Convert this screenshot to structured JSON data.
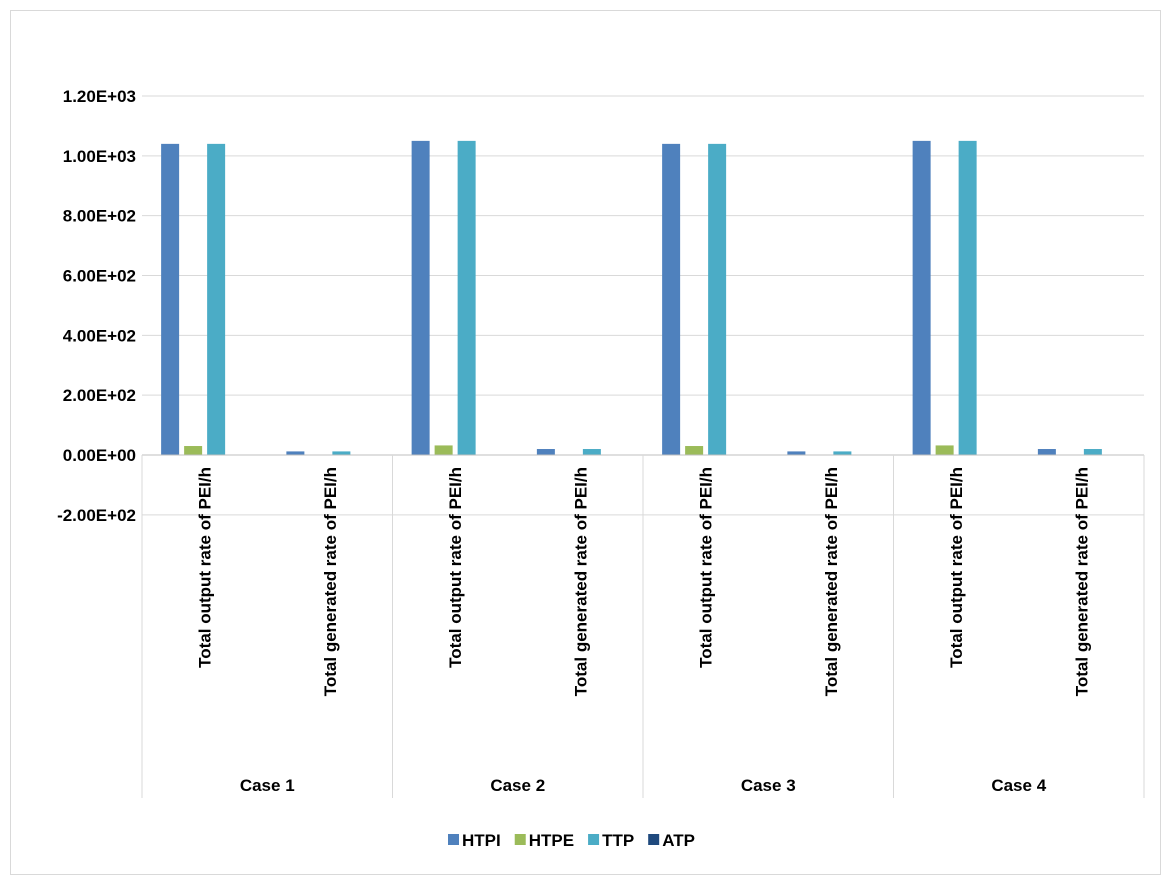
{
  "chart_data": {
    "type": "bar",
    "title": "",
    "xlabel": "",
    "ylabel": "",
    "ylim": [
      -200,
      1200
    ],
    "ytick_step": 200,
    "ytick_labels": [
      "-2.00E+02",
      "0.00E+00",
      "2.00E+02",
      "4.00E+02",
      "6.00E+02",
      "8.00E+02",
      "1.00E+03",
      "1.20E+03"
    ],
    "grid": true,
    "legend_position": "bottom",
    "groups": [
      "Case 1",
      "Case 2",
      "Case 3",
      "Case 4"
    ],
    "subcategories": [
      "Total output rate of PEI/h",
      "Total generated rate of PEI/h"
    ],
    "categories": [
      "Case 1 | Total output rate of PEI/h",
      "Case 1 | Total generated rate of PEI/h",
      "Case 2 | Total output rate of PEI/h",
      "Case 2 | Total generated rate of PEI/h",
      "Case 3 | Total output rate of PEI/h",
      "Case 3 | Total generated rate of PEI/h",
      "Case 4 | Total output rate of PEI/h",
      "Case 4 | Total generated rate of PEI/h"
    ],
    "series": [
      {
        "name": "HTPI",
        "color": "#4F81BD",
        "values": [
          1040,
          12,
          1050,
          20,
          1040,
          12,
          1050,
          20
        ]
      },
      {
        "name": "HTPE",
        "color": "#9BBB59",
        "values": [
          30,
          0,
          32,
          0,
          30,
          0,
          32,
          0
        ]
      },
      {
        "name": "TTP",
        "color": "#4BACC6",
        "values": [
          1040,
          12,
          1050,
          20,
          1040,
          12,
          1050,
          20
        ]
      },
      {
        "name": "ATP",
        "color": "#1F497D",
        "values": [
          0,
          0,
          0,
          0,
          0,
          0,
          0,
          0
        ]
      }
    ]
  }
}
